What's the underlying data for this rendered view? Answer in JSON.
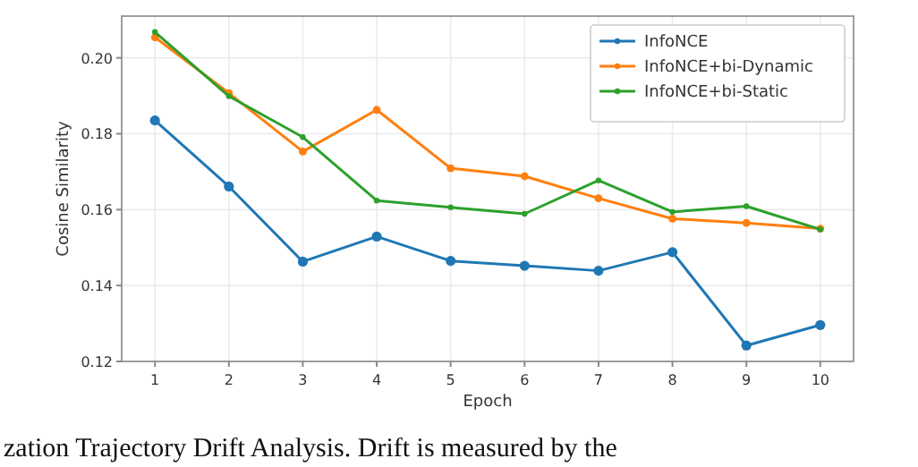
{
  "chart_data": {
    "type": "line",
    "xlabel": "Epoch",
    "ylabel": "Cosine Similarity",
    "x": [
      1,
      2,
      3,
      4,
      5,
      6,
      7,
      8,
      9,
      10
    ],
    "series": [
      {
        "name": "InfoNCE",
        "color": "#1f77b4",
        "values": [
          0.1835,
          0.1661,
          0.1463,
          0.1529,
          0.1465,
          0.1452,
          0.1439,
          0.1488,
          0.1242,
          0.1296
        ]
      },
      {
        "name": "InfoNCE+bi-Dynamic",
        "color": "#ff7f0e",
        "values": [
          0.2054,
          0.1907,
          0.1753,
          0.1863,
          0.1709,
          0.1688,
          0.163,
          0.1576,
          0.1565,
          0.155
        ]
      },
      {
        "name": "InfoNCE+bi-Static",
        "color": "#2ca02c",
        "values": [
          0.2068,
          0.1899,
          0.1791,
          0.1624,
          0.1606,
          0.1589,
          0.1677,
          0.1594,
          0.1609,
          0.1548
        ]
      }
    ],
    "xlim": [
      0.55,
      10.45
    ],
    "ylim": [
      0.12,
      0.211
    ],
    "xticks": [
      1,
      2,
      3,
      4,
      5,
      6,
      7,
      8,
      9,
      10
    ],
    "yticks": [
      {
        "value": 0.12,
        "label": "0.12"
      },
      {
        "value": 0.14,
        "label": "0.14"
      },
      {
        "value": 0.16,
        "label": "0.16"
      },
      {
        "value": 0.18,
        "label": "0.18"
      },
      {
        "value": 0.2,
        "label": "0.20"
      }
    ],
    "grid": true,
    "legend": "top right",
    "marker": "circle",
    "line_style": "solid",
    "annotations": [
      "zation Trajectory Drift Analysis. Drift is measured by the"
    ]
  }
}
